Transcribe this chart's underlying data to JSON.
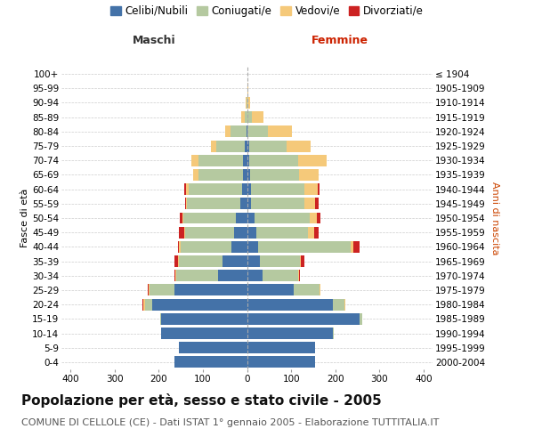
{
  "age_groups_bottom_to_top": [
    "0-4",
    "5-9",
    "10-14",
    "15-19",
    "20-24",
    "25-29",
    "30-34",
    "35-39",
    "40-44",
    "45-49",
    "50-54",
    "55-59",
    "60-64",
    "65-69",
    "70-74",
    "75-79",
    "80-84",
    "85-89",
    "90-94",
    "95-99",
    "100+"
  ],
  "birth_years_bottom_to_top": [
    "2000-2004",
    "1995-1999",
    "1990-1994",
    "1985-1989",
    "1980-1984",
    "1975-1979",
    "1970-1974",
    "1965-1969",
    "1960-1964",
    "1955-1959",
    "1950-1954",
    "1945-1949",
    "1940-1944",
    "1935-1939",
    "1930-1934",
    "1925-1929",
    "1920-1924",
    "1915-1919",
    "1910-1914",
    "1905-1909",
    "≤ 1904"
  ],
  "maschi_celibi": [
    165,
    155,
    195,
    195,
    215,
    165,
    65,
    55,
    35,
    30,
    25,
    15,
    12,
    10,
    10,
    5,
    2,
    0,
    0,
    0,
    0
  ],
  "maschi_coniugati": [
    0,
    0,
    0,
    2,
    15,
    55,
    95,
    100,
    115,
    110,
    120,
    120,
    120,
    100,
    100,
    65,
    35,
    5,
    2,
    0,
    0
  ],
  "maschi_vedovi": [
    0,
    0,
    0,
    0,
    5,
    2,
    2,
    2,
    5,
    2,
    2,
    2,
    5,
    12,
    15,
    12,
    12,
    8,
    1,
    0,
    0
  ],
  "maschi_divorziati": [
    0,
    0,
    0,
    0,
    2,
    2,
    2,
    8,
    2,
    12,
    5,
    2,
    5,
    0,
    0,
    0,
    0,
    0,
    0,
    0,
    0
  ],
  "femmine_nubili": [
    155,
    155,
    195,
    255,
    195,
    105,
    35,
    30,
    25,
    22,
    18,
    10,
    10,
    8,
    5,
    5,
    2,
    0,
    0,
    0,
    0
  ],
  "femmine_coniugate": [
    0,
    0,
    2,
    5,
    25,
    60,
    80,
    90,
    210,
    115,
    125,
    120,
    120,
    110,
    110,
    85,
    45,
    12,
    2,
    2,
    0
  ],
  "femmine_vedove": [
    0,
    0,
    0,
    0,
    2,
    2,
    2,
    2,
    5,
    15,
    15,
    25,
    30,
    45,
    65,
    55,
    55,
    25,
    5,
    2,
    0
  ],
  "femmine_divorziate": [
    0,
    0,
    0,
    0,
    0,
    0,
    2,
    8,
    15,
    10,
    8,
    8,
    5,
    0,
    0,
    0,
    0,
    0,
    0,
    0,
    0
  ],
  "color_celibi": "#4472a8",
  "color_coniugati": "#b5c9a0",
  "color_vedovi": "#f5c97a",
  "color_divorziati": "#cc2222",
  "xlim": 420,
  "title": "Popolazione per età, sesso e stato civile - 2005",
  "subtitle": "COMUNE DI CELLOLE (CE) - Dati ISTAT 1° gennaio 2005 - Elaborazione TUTTITALIA.IT",
  "header_left": "Maschi",
  "header_right": "Femmine",
  "ylabel_left": "Fasce di età",
  "ylabel_right": "Anni di nascita",
  "legend_labels": [
    "Celibi/Nubili",
    "Coniugati/e",
    "Vedovi/e",
    "Divorziati/e"
  ],
  "background": "#ffffff",
  "grid_color": "#cccccc",
  "title_fontsize": 11,
  "subtitle_fontsize": 8,
  "label_fontsize": 8,
  "tick_fontsize": 7.5,
  "legend_fontsize": 8.5
}
